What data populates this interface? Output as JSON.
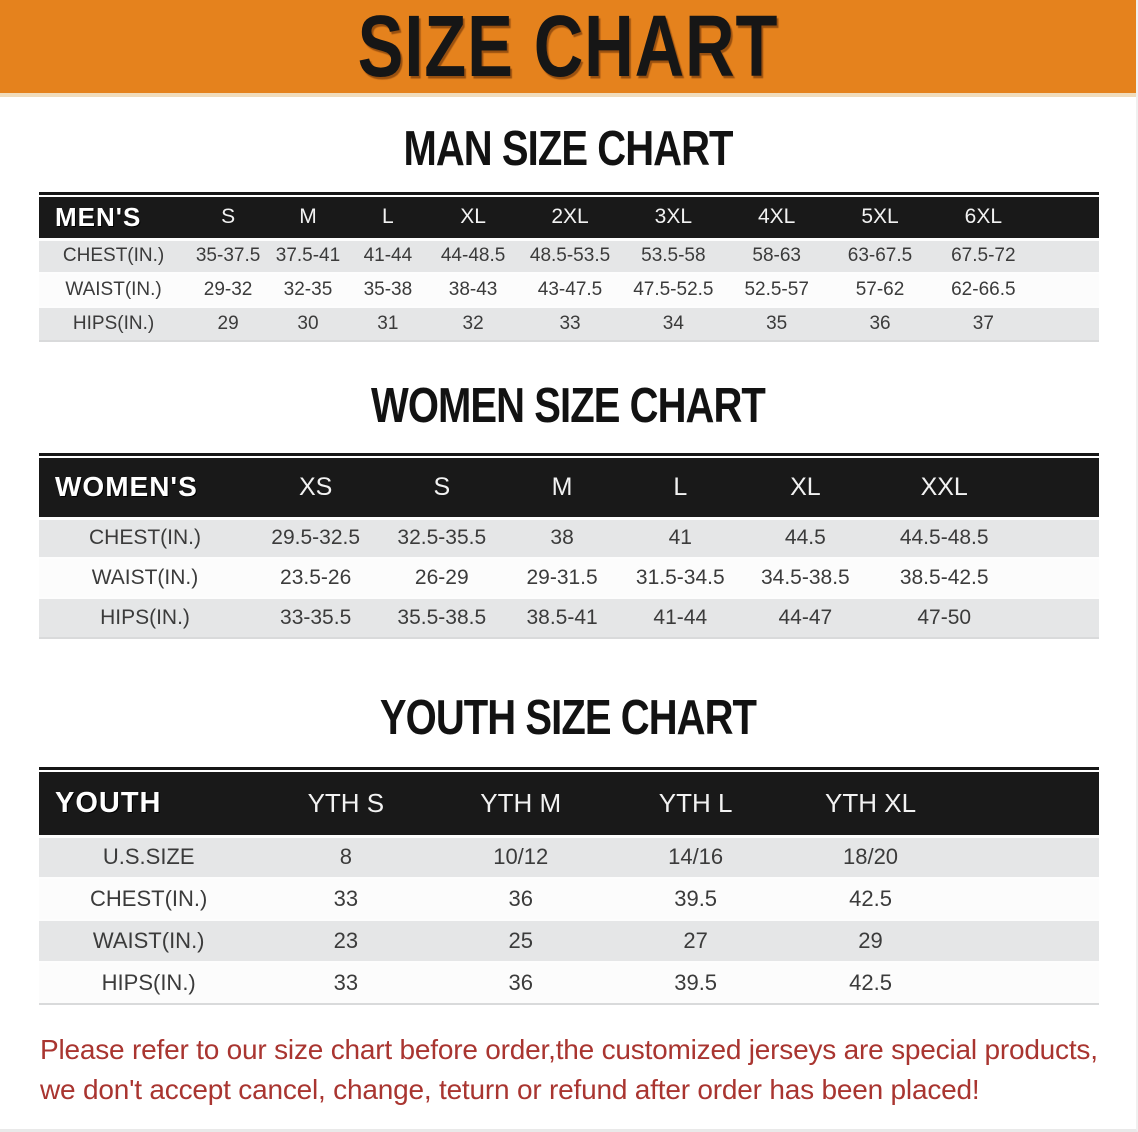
{
  "banner": {
    "title": "SIZE CHART",
    "background_color": "#e5821d",
    "text_color": "#161616"
  },
  "sections": [
    {
      "heading": "MAN SIZE CHART",
      "table": {
        "label": "MEN'S",
        "columns": [
          "S",
          "M",
          "L",
          "XL",
          "2XL",
          "3XL",
          "4XL",
          "5XL",
          "6XL"
        ],
        "rows": [
          {
            "label": "CHEST(IN.)",
            "values": [
              "35-37.5",
              "37.5-41",
              "41-44",
              "44-48.5",
              "48.5-53.5",
              "53.5-58",
              "58-63",
              "63-67.5",
              "67.5-72"
            ]
          },
          {
            "label": "WAIST(IN.)",
            "values": [
              "29-32",
              "32-35",
              "35-38",
              "38-43",
              "43-47.5",
              "47.5-52.5",
              "52.5-57",
              "57-62",
              "62-66.5"
            ]
          },
          {
            "label": "HIPS(IN.)",
            "values": [
              "29",
              "30",
              "31",
              "32",
              "33",
              "34",
              "35",
              "36",
              "37"
            ]
          }
        ]
      }
    },
    {
      "heading": "WOMEN SIZE CHART",
      "table": {
        "label": "WOMEN'S",
        "columns": [
          "XS",
          "S",
          "M",
          "L",
          "XL",
          "XXL"
        ],
        "rows": [
          {
            "label": "CHEST(IN.)",
            "values": [
              "29.5-32.5",
              "32.5-35.5",
              "38",
              "41",
              "44.5",
              "44.5-48.5"
            ]
          },
          {
            "label": "WAIST(IN.)",
            "values": [
              "23.5-26",
              "26-29",
              "29-31.5",
              "31.5-34.5",
              "34.5-38.5",
              "38.5-42.5"
            ]
          },
          {
            "label": "HIPS(IN.)",
            "values": [
              "33-35.5",
              "35.5-38.5",
              "38.5-41",
              "41-44",
              "44-47",
              "47-50"
            ]
          }
        ]
      }
    },
    {
      "heading": "YOUTH SIZE CHART",
      "table": {
        "label": "YOUTH",
        "columns": [
          "YTH S",
          "YTH M",
          "YTH L",
          "YTH XL"
        ],
        "rows": [
          {
            "label": "U.S.SIZE",
            "values": [
              "8",
              "10/12",
              "14/16",
              "18/20"
            ]
          },
          {
            "label": "CHEST(IN.)",
            "values": [
              "33",
              "36",
              "39.5",
              "42.5"
            ]
          },
          {
            "label": "WAIST(IN.)",
            "values": [
              "23",
              "25",
              "27",
              "29"
            ]
          },
          {
            "label": "HIPS(IN.)",
            "values": [
              "33",
              "36",
              "39.5",
              "42.5"
            ]
          }
        ]
      }
    }
  ],
  "disclaimer": {
    "line1": "Please refer to our size chart before order,the customized jerseys are special products,",
    "line2": "we don't accept cancel, change, teturn or refund after order has been placed!",
    "text_color": "#a93530"
  },
  "chart_data": [
    {
      "type": "table",
      "title": "MAN SIZE CHART",
      "columns": [
        "MEN'S",
        "S",
        "M",
        "L",
        "XL",
        "2XL",
        "3XL",
        "4XL",
        "5XL",
        "6XL"
      ],
      "rows": [
        [
          "CHEST(IN.)",
          "35-37.5",
          "37.5-41",
          "41-44",
          "44-48.5",
          "48.5-53.5",
          "53.5-58",
          "58-63",
          "63-67.5",
          "67.5-72"
        ],
        [
          "WAIST(IN.)",
          "29-32",
          "32-35",
          "35-38",
          "38-43",
          "43-47.5",
          "47.5-52.5",
          "52.5-57",
          "57-62",
          "62-66.5"
        ],
        [
          "HIPS(IN.)",
          "29",
          "30",
          "31",
          "32",
          "33",
          "34",
          "35",
          "36",
          "37"
        ]
      ]
    },
    {
      "type": "table",
      "title": "WOMEN SIZE CHART",
      "columns": [
        "WOMEN'S",
        "XS",
        "S",
        "M",
        "L",
        "XL",
        "XXL"
      ],
      "rows": [
        [
          "CHEST(IN.)",
          "29.5-32.5",
          "32.5-35.5",
          "38",
          "41",
          "44.5",
          "44.5-48.5"
        ],
        [
          "WAIST(IN.)",
          "23.5-26",
          "26-29",
          "29-31.5",
          "31.5-34.5",
          "34.5-38.5",
          "38.5-42.5"
        ],
        [
          "HIPS(IN.)",
          "33-35.5",
          "35.5-38.5",
          "38.5-41",
          "41-44",
          "44-47",
          "47-50"
        ]
      ]
    },
    {
      "type": "table",
      "title": "YOUTH SIZE CHART",
      "columns": [
        "YOUTH",
        "YTH S",
        "YTH M",
        "YTH L",
        "YTH XL"
      ],
      "rows": [
        [
          "U.S.SIZE",
          "8",
          "10/12",
          "14/16",
          "18/20"
        ],
        [
          "CHEST(IN.)",
          "33",
          "36",
          "39.5",
          "42.5"
        ],
        [
          "WAIST(IN.)",
          "23",
          "25",
          "27",
          "29"
        ],
        [
          "HIPS(IN.)",
          "33",
          "36",
          "39.5",
          "42.5"
        ]
      ]
    }
  ]
}
